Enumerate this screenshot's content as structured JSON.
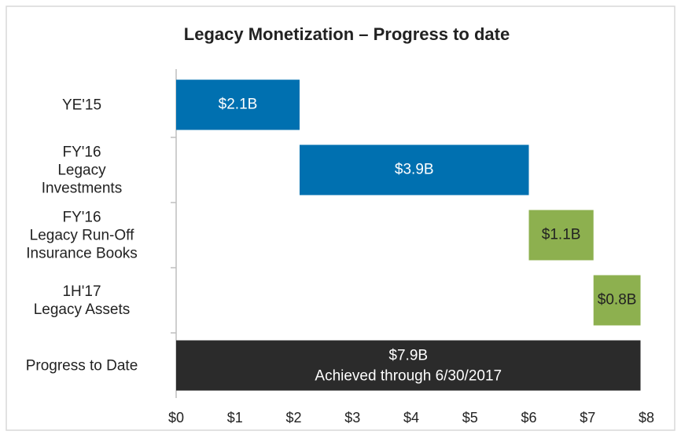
{
  "chart_data": {
    "type": "waterfall",
    "title": "Legacy Monetization – Progress to date",
    "categories": [
      "YE'15",
      "FY'16\nLegacy\nInvestments",
      "FY'16\nLegacy Run-Off\nInsurance Books",
      "1H'17\nLegacy Assets",
      "Progress to Date"
    ],
    "values": [
      2.1,
      3.9,
      1.1,
      0.8,
      7.9
    ],
    "value_labels": [
      "$2.1B",
      "$3.9B",
      "$1.1B",
      "$0.8B",
      "$7.9B"
    ],
    "measures": [
      "relative",
      "relative",
      "relative",
      "relative",
      "total"
    ],
    "colors": [
      "#0070b0",
      "#0070b0",
      "#8db04f",
      "#8db04f",
      "#2b2b2b"
    ],
    "total_note": "Achieved through 6/30/2017",
    "xlim": [
      0,
      8
    ],
    "xticks": [
      {
        "value": 0,
        "label": "$0"
      },
      {
        "value": 1,
        "label": "$1"
      },
      {
        "value": 2,
        "label": "$2"
      },
      {
        "value": 3,
        "label": "$3"
      },
      {
        "value": 4,
        "label": "$4"
      },
      {
        "value": 5,
        "label": "$5"
      },
      {
        "value": 6,
        "label": "$6"
      },
      {
        "value": 7,
        "label": "$7"
      },
      {
        "value": 8,
        "label": "$8"
      }
    ]
  }
}
